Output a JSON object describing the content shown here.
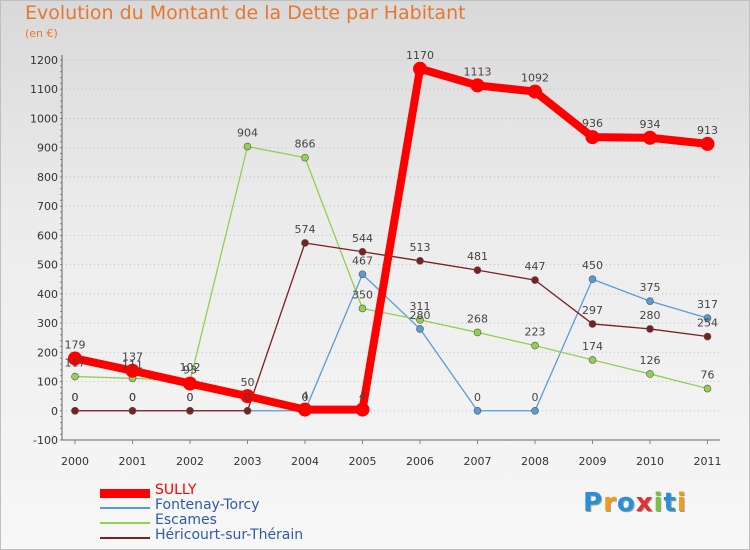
{
  "title": "Evolution du Montant de la Dette par Habitant",
  "unit_label": "(en €)",
  "logo": {
    "text": "Proxiti",
    "colors": [
      "#2a8fd6",
      "#f39a1b",
      "#2a8fd6",
      "#e3312d",
      "#7cc242",
      "#2a8fd6",
      "#f39a1b"
    ]
  },
  "chart_data": {
    "type": "line",
    "title": "Evolution du Montant de la Dette par Habitant",
    "ylabel": "(en €)",
    "xlabel": "",
    "x": [
      "2000",
      "2001",
      "2002",
      "2003",
      "2004",
      "2005",
      "2006",
      "2007",
      "2008",
      "2009",
      "2010",
      "2011"
    ],
    "ylim": [
      -100,
      1200
    ],
    "yticks": [
      -100,
      0,
      100,
      200,
      300,
      400,
      500,
      600,
      700,
      800,
      900,
      1000,
      1100,
      1200
    ],
    "grid": "horizontal dotted",
    "legend_position": "bottom-left",
    "series": [
      {
        "name": "SULLY",
        "color": "#ff0000",
        "values": [
          179,
          137,
          93,
          50,
          4,
          4,
          1170,
          1113,
          1092,
          936,
          934,
          913
        ]
      },
      {
        "name": "Fontenay-Torcy",
        "color": "#5b9bd5",
        "values": [
          0,
          0,
          0,
          0,
          0,
          467,
          280,
          0,
          0,
          450,
          375,
          317
        ]
      },
      {
        "name": "Escames",
        "color": "#92d050",
        "values": [
          117,
          111,
          102,
          904,
          866,
          350,
          311,
          268,
          223,
          174,
          126,
          76
        ]
      },
      {
        "name": "Héricourt-sur-Thérain",
        "color": "#7b2020",
        "values": [
          0,
          0,
          0,
          0,
          574,
          544,
          513,
          481,
          447,
          297,
          280,
          254
        ]
      }
    ]
  }
}
